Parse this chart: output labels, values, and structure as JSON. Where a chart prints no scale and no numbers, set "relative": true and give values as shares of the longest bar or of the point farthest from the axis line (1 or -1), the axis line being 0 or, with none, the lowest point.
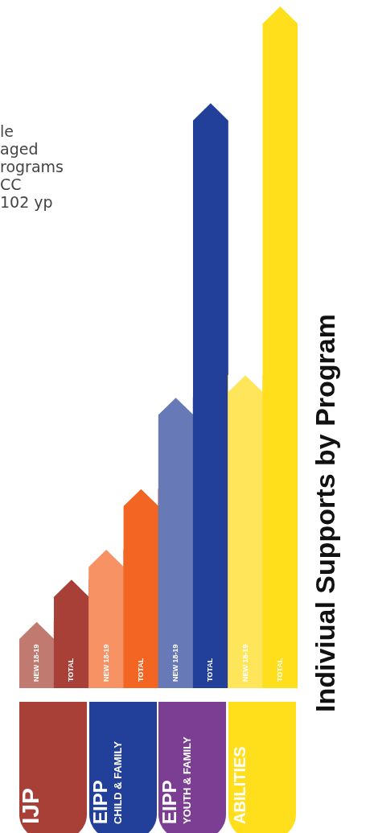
{
  "chart_data": {
    "type": "bar",
    "title": "Indiviual Supports by Program",
    "relative": true,
    "data_labels": false,
    "categories": [
      "NEW 18-19",
      "TOTAL",
      "NEW 18-19",
      "TOTAL",
      "NEW 18-19",
      "TOTAL",
      "NEW 18-19",
      "TOTAL"
    ],
    "values": [
      0.097,
      0.159,
      0.203,
      0.292,
      0.426,
      0.858,
      0.459,
      1
    ],
    "colors": [
      "#c07a70",
      "#a84038",
      "#f79264",
      "#f26522",
      "#6779b6",
      "#22409a",
      "#ffe55a",
      "#ffdf1c"
    ],
    "annotations": [
      "le\naged\nrograms\nCC\n102 yp",
      "IJP",
      "EIPP\nCHILD & FAMILY",
      "EIPP\nYOUTH & FAMILY",
      "ABILITIES"
    ],
    "legend": false
  }
}
